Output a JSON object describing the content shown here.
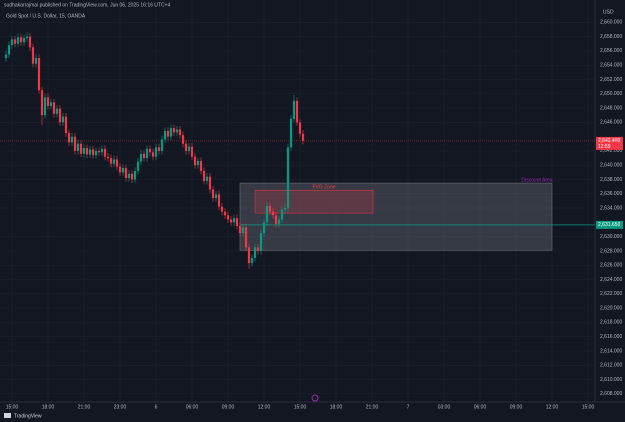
{
  "header": {
    "byline": "sudhakarrajmai published on TradingView.com, Jun 06, 2025 16:16 UTC+4",
    "footer": "TradingView"
  },
  "chart_data": {
    "type": "candlestick",
    "title": "Gold Spot / U.S. Dollar, 15, OANDA",
    "currency": "USD",
    "up_color": "#089981",
    "down_color": "#f23645",
    "open": [
      2655.0,
      2655.5,
      2656.8,
      2657.6,
      2657.0,
      2657.9,
      2657.2,
      2657.8,
      2658.0,
      2656.5,
      2654.2,
      2655.0,
      2650.5,
      2647.0,
      2649.5,
      2648.3,
      2648.8,
      2647.2,
      2647.9,
      2646.0,
      2646.8,
      2644.5,
      2643.2,
      2644.0,
      2642.0,
      2643.0,
      2641.6,
      2642.4,
      2641.5,
      2642.2,
      2641.4,
      2642.0,
      2641.8,
      2642.3,
      2641.2,
      2641.0,
      2640.2,
      2640.8,
      2639.8,
      2639.0,
      2639.6,
      2638.2,
      2638.8,
      2638.0,
      2639.2,
      2640.5,
      2641.6,
      2641.0,
      2642.3,
      2641.8,
      2641.2,
      2642.5,
      2642.0,
      2643.6,
      2644.8,
      2644.0,
      2645.2,
      2644.6,
      2645.0,
      2644.2,
      2643.0,
      2642.0,
      2642.6,
      2641.2,
      2640.0,
      2640.6,
      2639.2,
      2637.8,
      2638.4,
      2636.6,
      2635.4,
      2635.9,
      2634.2,
      2633.5,
      2633.0,
      2632.4,
      2632.0,
      2632.6,
      2631.5,
      2630.5,
      2631.3,
      2628.5,
      2626.3,
      2627.0,
      2628.5,
      2628.0,
      2630.5,
      2632.0,
      2634.3,
      2633.5,
      2633.0,
      2631.8,
      2632.4,
      2633.8,
      2634.0,
      2642.5,
      2646.5,
      2649.0,
      2646.0,
      2644.4
    ],
    "high": [
      2656.0,
      2657.3,
      2658.1,
      2658.1,
      2658.4,
      2658.4,
      2658.3,
      2658.6,
      2658.5,
      2657.0,
      2655.5,
      2655.5,
      2651.0,
      2650.0,
      2650.0,
      2649.3,
      2649.3,
      2648.4,
      2648.4,
      2647.3,
      2647.3,
      2645.0,
      2644.5,
      2644.5,
      2643.5,
      2643.5,
      2642.9,
      2642.9,
      2642.7,
      2642.7,
      2642.5,
      2642.5,
      2642.8,
      2642.8,
      2641.7,
      2641.5,
      2641.3,
      2641.3,
      2640.3,
      2640.1,
      2640.1,
      2639.3,
      2639.3,
      2639.7,
      2641.0,
      2642.1,
      2642.1,
      2642.8,
      2642.8,
      2642.3,
      2643.0,
      2643.0,
      2644.1,
      2645.3,
      2645.3,
      2645.7,
      2645.7,
      2645.5,
      2645.5,
      2644.7,
      2643.5,
      2643.1,
      2643.1,
      2641.7,
      2641.1,
      2641.1,
      2639.7,
      2638.9,
      2638.9,
      2637.1,
      2636.4,
      2636.4,
      2634.7,
      2634.0,
      2633.5,
      2632.9,
      2633.1,
      2633.1,
      2632.0,
      2631.8,
      2631.8,
      2629.0,
      2627.5,
      2629.0,
      2629.0,
      2631.0,
      2632.5,
      2634.8,
      2634.8,
      2634.0,
      2633.5,
      2632.9,
      2634.3,
      2634.5,
      2643.0,
      2647.0,
      2649.8,
      2649.5,
      2646.5,
      2644.9
    ],
    "low": [
      2654.5,
      2655.0,
      2656.3,
      2656.5,
      2656.5,
      2656.7,
      2656.7,
      2657.3,
      2656.0,
      2653.7,
      2653.7,
      2650.0,
      2645.6,
      2646.5,
      2647.8,
      2647.8,
      2646.7,
      2646.7,
      2645.5,
      2645.5,
      2644.0,
      2642.7,
      2642.7,
      2641.5,
      2641.5,
      2641.1,
      2641.1,
      2641.0,
      2641.0,
      2640.9,
      2640.9,
      2641.3,
      2641.3,
      2640.7,
      2640.5,
      2639.7,
      2639.7,
      2639.3,
      2638.5,
      2638.5,
      2637.7,
      2637.7,
      2637.5,
      2637.5,
      2638.7,
      2640.0,
      2640.5,
      2640.5,
      2641.3,
      2640.7,
      2640.7,
      2641.5,
      2641.5,
      2643.1,
      2643.5,
      2643.5,
      2644.1,
      2644.1,
      2643.7,
      2642.5,
      2641.5,
      2641.5,
      2640.7,
      2639.5,
      2639.5,
      2638.7,
      2637.3,
      2637.3,
      2636.1,
      2634.9,
      2634.9,
      2633.7,
      2633.0,
      2632.5,
      2631.9,
      2631.5,
      2631.5,
      2631.0,
      2630.0,
      2630.0,
      2628.0,
      2625.5,
      2625.8,
      2626.5,
      2627.5,
      2627.5,
      2630.0,
      2631.5,
      2633.0,
      2632.5,
      2631.3,
      2631.3,
      2631.9,
      2633.3,
      2633.5,
      2642.0,
      2646.0,
      2645.5,
      2643.9,
      2642.9
    ],
    "close": [
      2655.5,
      2656.8,
      2657.6,
      2657.0,
      2657.9,
      2657.2,
      2657.8,
      2658.0,
      2656.5,
      2654.2,
      2655.0,
      2650.5,
      2647.0,
      2649.5,
      2648.3,
      2648.8,
      2647.2,
      2647.9,
      2646.0,
      2646.8,
      2644.5,
      2643.2,
      2644.0,
      2642.0,
      2643.0,
      2641.6,
      2642.4,
      2641.5,
      2642.2,
      2641.4,
      2642.0,
      2641.8,
      2642.3,
      2641.2,
      2641.0,
      2640.2,
      2640.8,
      2639.8,
      2639.0,
      2639.6,
      2638.2,
      2638.8,
      2638.0,
      2639.2,
      2640.5,
      2641.6,
      2641.0,
      2642.3,
      2641.8,
      2641.2,
      2642.5,
      2642.0,
      2643.6,
      2644.8,
      2644.0,
      2645.2,
      2644.6,
      2645.0,
      2644.2,
      2643.0,
      2642.0,
      2642.6,
      2641.2,
      2640.0,
      2640.6,
      2639.2,
      2637.8,
      2638.4,
      2636.6,
      2635.4,
      2635.9,
      2634.2,
      2633.5,
      2633.0,
      2632.4,
      2632.0,
      2632.6,
      2631.5,
      2630.5,
      2631.3,
      2628.5,
      2626.3,
      2627.0,
      2628.5,
      2628.0,
      2630.5,
      2632.0,
      2634.3,
      2633.5,
      2633.0,
      2631.8,
      2632.4,
      2633.8,
      2634.0,
      2642.5,
      2646.5,
      2649.0,
      2646.0,
      2644.4,
      2643.4
    ],
    "time_labels": [
      "15:00",
      "18:00",
      "21:00",
      "23:00",
      "6",
      "06:00",
      "09:00",
      "12:00",
      "15:00",
      "18:00",
      "21:00",
      "7",
      "03:00",
      "06:00",
      "09:00",
      "12:00",
      "15:00"
    ],
    "ylim": [
      2607,
      2662
    ],
    "yticks": [
      {
        "value": 2660,
        "label": "2,660.000"
      },
      {
        "value": 2658,
        "label": "2,658.000"
      },
      {
        "value": 2656,
        "label": "2,656.000"
      },
      {
        "value": 2654,
        "label": "2,654.000"
      },
      {
        "value": 2652,
        "label": "2,652.000"
      },
      {
        "value": 2650,
        "label": "2,650.000"
      },
      {
        "value": 2648,
        "label": "2,648.000"
      },
      {
        "value": 2646,
        "label": "2,646.000"
      },
      {
        "value": 2642,
        "label": "2,642.000"
      },
      {
        "value": 2640,
        "label": "2,640.000"
      },
      {
        "value": 2638,
        "label": "2,638.000"
      },
      {
        "value": 2636,
        "label": "2,636.000"
      },
      {
        "value": 2634,
        "label": "2,634.000"
      },
      {
        "value": 2630,
        "label": "2,630.000"
      },
      {
        "value": 2628,
        "label": "2,628.000"
      },
      {
        "value": 2626,
        "label": "2,626.000"
      },
      {
        "value": 2624,
        "label": "2,624.000"
      },
      {
        "value": 2622,
        "label": "2,622.000"
      },
      {
        "value": 2620,
        "label": "2,620.000"
      },
      {
        "value": 2618,
        "label": "2,618.000"
      },
      {
        "value": 2616,
        "label": "2,616.000"
      },
      {
        "value": 2614,
        "label": "2,614.000"
      },
      {
        "value": 2612,
        "label": "2,612.000"
      },
      {
        "value": 2610,
        "label": "2,610.000"
      },
      {
        "value": 2608,
        "label": "2,608.000"
      }
    ],
    "grid": true,
    "zones": [
      {
        "name": "Discount Area",
        "top": 2637.5,
        "bottom": 2628.1,
        "color": "#9c27b0"
      },
      {
        "name": "FVG Zone",
        "top": 2636.5,
        "bottom": 2633.3,
        "color": "#f23645"
      }
    ],
    "level_line": {
      "value": 2631.65,
      "label": "2,631.650",
      "color": "#089981"
    },
    "last_price": {
      "value": 2643.4,
      "label": "2,643.400",
      "countdown": "12:59",
      "color": "#f23645"
    }
  }
}
